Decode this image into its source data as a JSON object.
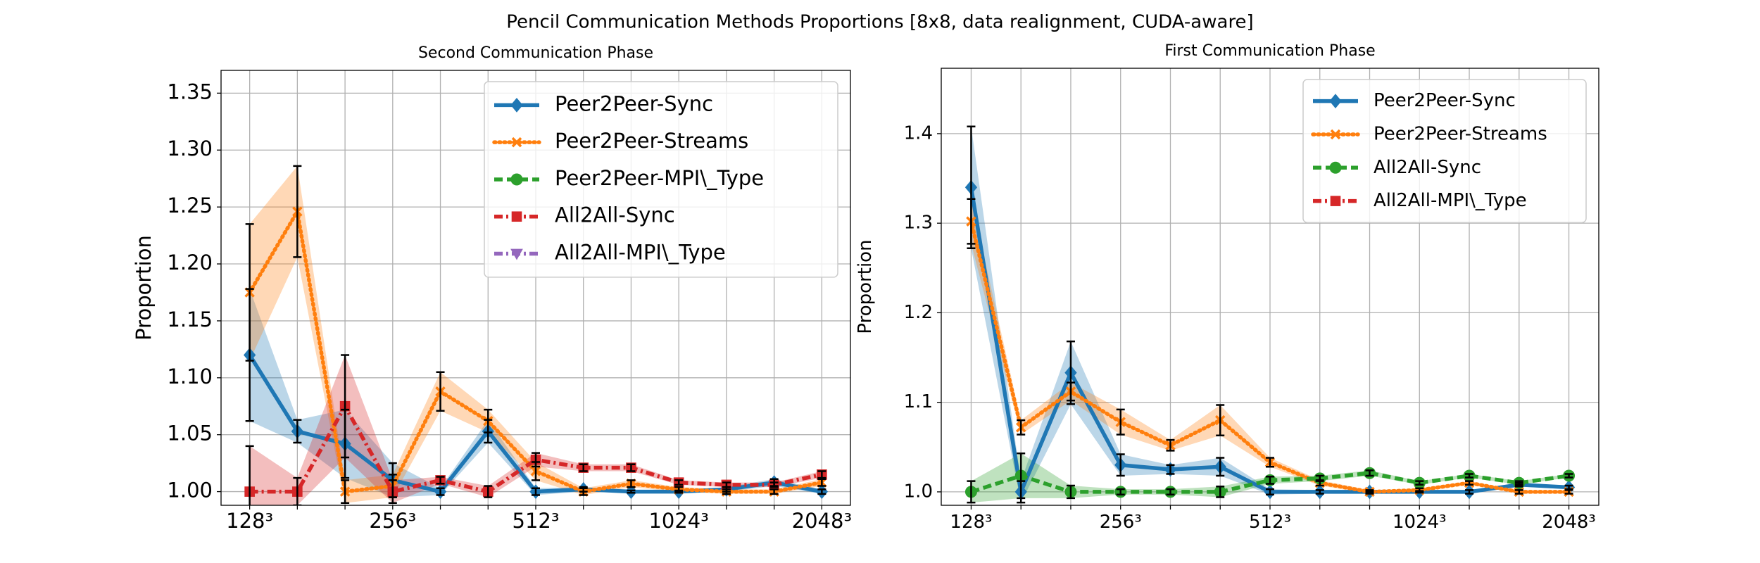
{
  "title": "Pencil Communication Methods Proportions [8x8, data realignment, CUDA-aware]",
  "chart_data": [
    {
      "type": "line",
      "title": "Second Communication Phase",
      "ylabel": "Proportion",
      "categories": [
        "128³",
        null,
        null,
        "256³",
        null,
        null,
        "512³",
        null,
        null,
        "1024³",
        null,
        null,
        "2048³"
      ],
      "ylim": [
        0.988,
        1.37
      ],
      "yticks": [
        {
          "value": 1.0,
          "label": "1.00"
        },
        1.05,
        {
          "value": 1.1,
          "label": "1.10"
        },
        1.15,
        {
          "value": 1.2,
          "label": "1.20"
        },
        1.25,
        {
          "value": 1.3,
          "label": "1.30"
        },
        1.35
      ],
      "grid": true,
      "legend": "upper right",
      "series": [
        {
          "name": "Peer2Peer-Sync",
          "color": "#1f77b4",
          "marker": "diamond",
          "linestyle": "solid",
          "values": [
            1.12,
            1.053,
            1.042,
            1.01,
            1.0,
            1.053,
            1.0,
            1.002,
            1.0,
            1.0,
            1.002,
            1.008,
            1.0
          ],
          "errors": [
            0.058,
            0.01,
            0.03,
            0.015,
            0.003,
            0.01,
            0.003,
            0.002,
            0.001,
            0.001,
            0.002,
            0.003,
            0.002
          ]
        },
        {
          "name": "Peer2Peer-Streams",
          "color": "#ff7f0e",
          "marker": "x",
          "linestyle": "dotted",
          "values": [
            1.175,
            1.246,
            1.0,
            1.005,
            1.088,
            1.062,
            1.018,
            1.0,
            1.007,
            1.002,
            1.0,
            1.0,
            1.008
          ],
          "errors": [
            0.06,
            0.04,
            0.01,
            0.01,
            0.017,
            0.01,
            0.008,
            0.003,
            0.003,
            0.002,
            0.002,
            0.002,
            0.003
          ]
        },
        {
          "name": "Peer2Peer-MPI\\_Type",
          "color": "#2ca02c",
          "marker": "circle",
          "linestyle": "dashed",
          "values": [
            null,
            null,
            null,
            null,
            null,
            null,
            null,
            null,
            null,
            null,
            null,
            null,
            null
          ]
        },
        {
          "name": "All2All-Sync",
          "color": "#d62728",
          "marker": "square",
          "linestyle": "dashdot",
          "values": [
            1.0,
            1.0,
            1.075,
            1.0,
            1.01,
            1.0,
            1.028,
            1.021,
            1.021,
            1.008,
            1.006,
            1.006,
            1.015
          ],
          "errors": [
            0.04,
            0.012,
            0.045,
            0.01,
            0.003,
            0.005,
            0.006,
            0.003,
            0.003,
            0.002,
            0.002,
            0.002,
            0.003
          ]
        },
        {
          "name": "All2All-MPI\\_Type",
          "color": "#9467bd",
          "marker": "triangle-down",
          "linestyle": "dashdot",
          "values": [
            null,
            null,
            null,
            null,
            null,
            null,
            null,
            null,
            null,
            null,
            null,
            null,
            null
          ]
        }
      ]
    },
    {
      "type": "line",
      "title": "First Communication Phase",
      "ylabel": "Proportion",
      "categories": [
        "128³",
        null,
        null,
        "256³",
        null,
        null,
        "512³",
        null,
        null,
        "1024³",
        null,
        null,
        "2048³"
      ],
      "ylim": [
        0.985,
        1.473
      ],
      "yticks": [
        {
          "value": 1.0,
          "label": "1.0"
        },
        1.1,
        1.2,
        1.3,
        1.4
      ],
      "grid": true,
      "legend": "upper right",
      "series": [
        {
          "name": "Peer2Peer-Sync",
          "color": "#1f77b4",
          "marker": "diamond",
          "linestyle": "solid",
          "values": [
            1.34,
            1.0,
            1.133,
            1.03,
            1.025,
            1.028,
            1.0,
            1.0,
            1.0,
            1.0,
            1.0,
            1.008,
            1.005
          ],
          "errors": [
            0.068,
            0.012,
            0.035,
            0.012,
            0.005,
            0.01,
            0.003,
            0.002,
            0.001,
            0.001,
            0.002,
            0.002,
            0.002
          ]
        },
        {
          "name": "Peer2Peer-Streams",
          "color": "#ff7f0e",
          "marker": "x",
          "linestyle": "dotted",
          "values": [
            1.302,
            1.072,
            1.112,
            1.078,
            1.052,
            1.08,
            1.033,
            1.01,
            1.0,
            1.002,
            1.01,
            1.0,
            1.0
          ],
          "errors": [
            0.025,
            0.008,
            0.01,
            0.014,
            0.006,
            0.017,
            0.005,
            0.003,
            0.002,
            0.002,
            0.002,
            0.002,
            0.002
          ]
        },
        {
          "name": "All2All-Sync",
          "color": "#2ca02c",
          "marker": "circle",
          "linestyle": "dashed",
          "values": [
            1.0,
            1.018,
            1.0,
            1.0,
            1.0,
            1.0,
            1.013,
            1.015,
            1.021,
            1.01,
            1.018,
            1.01,
            1.018
          ],
          "errors": [
            0.012,
            0.025,
            0.007,
            0.003,
            0.003,
            0.006,
            0.004,
            0.003,
            0.003,
            0.002,
            0.002,
            0.002,
            0.002
          ]
        },
        {
          "name": "All2All-MPI\\_Type",
          "color": "#d62728",
          "marker": "square",
          "linestyle": "dashdot",
          "values": [
            null,
            null,
            null,
            null,
            null,
            null,
            null,
            null,
            null,
            null,
            null,
            null,
            null
          ]
        }
      ]
    }
  ]
}
